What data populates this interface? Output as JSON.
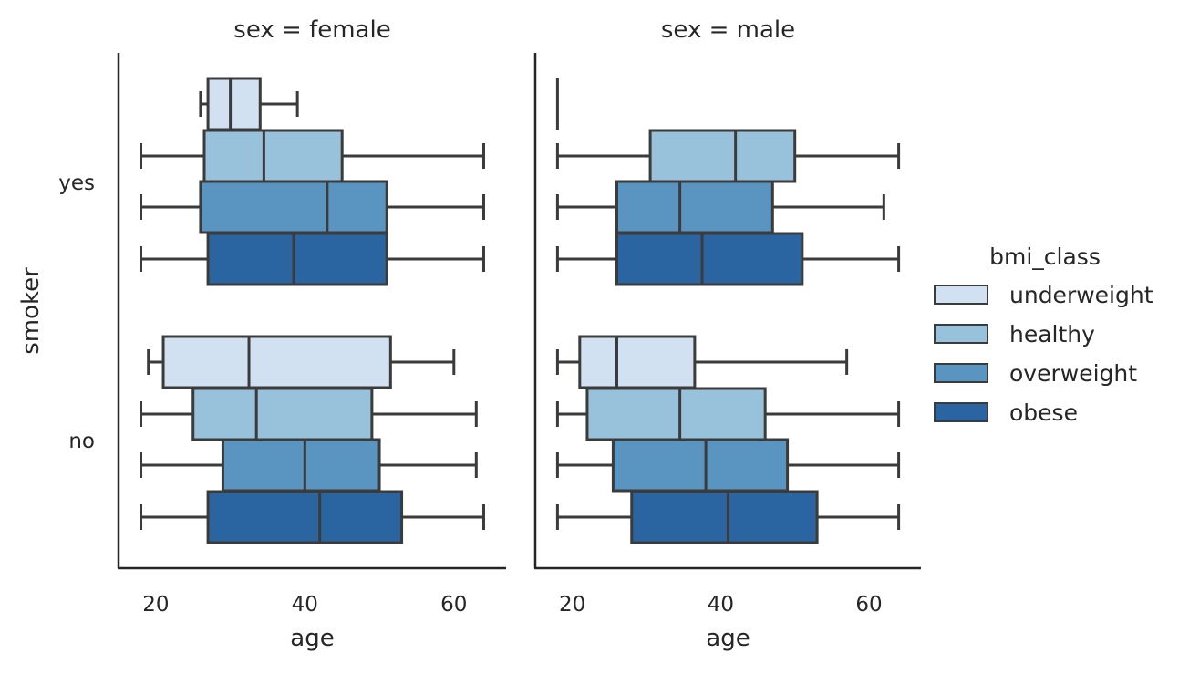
{
  "chart_data": {
    "type": "boxplot",
    "orientation": "horizontal",
    "x_label": "age",
    "y_label": "smoker",
    "xlim": [
      15,
      67
    ],
    "x_ticks": [
      "20",
      "40",
      "60"
    ],
    "categories": [
      "yes",
      "no"
    ],
    "hue_title": "bmi_class",
    "hue_levels": [
      "underweight",
      "healthy",
      "overweight",
      "obese"
    ],
    "colors": {
      "underweight": "#d2e1f1",
      "healthy": "#98c2db",
      "overweight": "#5a95c2",
      "obese": "#2b65a1",
      "line": "#3b3b3b",
      "axis": "#262626"
    },
    "legend_position": "right",
    "facets": [
      {
        "title": "sex = female",
        "groups": [
          {
            "category": "yes",
            "boxes": [
              {
                "hue": "underweight",
                "whislo": 26,
                "q1": 27,
                "med": 30,
                "q3": 34,
                "whishi": 39
              },
              {
                "hue": "healthy",
                "whislo": 18,
                "q1": 26.5,
                "med": 34.5,
                "q3": 45,
                "whishi": 64
              },
              {
                "hue": "overweight",
                "whislo": 18,
                "q1": 26,
                "med": 43,
                "q3": 51,
                "whishi": 64
              },
              {
                "hue": "obese",
                "whislo": 18,
                "q1": 27,
                "med": 38.5,
                "q3": 51,
                "whishi": 64
              }
            ]
          },
          {
            "category": "no",
            "boxes": [
              {
                "hue": "underweight",
                "whislo": 19,
                "q1": 21,
                "med": 32.5,
                "q3": 51.5,
                "whishi": 60
              },
              {
                "hue": "healthy",
                "whislo": 18,
                "q1": 25,
                "med": 33.5,
                "q3": 49,
                "whishi": 63
              },
              {
                "hue": "overweight",
                "whislo": 18,
                "q1": 29,
                "med": 40,
                "q3": 50,
                "whishi": 63
              },
              {
                "hue": "obese",
                "whislo": 18,
                "q1": 27,
                "med": 42,
                "q3": 53,
                "whishi": 64
              }
            ]
          }
        ]
      },
      {
        "title": "sex = male",
        "groups": [
          {
            "category": "yes",
            "boxes": [
              {
                "hue": "underweight",
                "whislo": 18,
                "q1": 18,
                "med": 18,
                "q3": 18,
                "whishi": 18
              },
              {
                "hue": "healthy",
                "whislo": 18,
                "q1": 30.5,
                "med": 42,
                "q3": 50,
                "whishi": 64
              },
              {
                "hue": "overweight",
                "whislo": 18,
                "q1": 26,
                "med": 34.5,
                "q3": 47,
                "whishi": 62
              },
              {
                "hue": "obese",
                "whislo": 18,
                "q1": 26,
                "med": 37.5,
                "q3": 51,
                "whishi": 64
              }
            ]
          },
          {
            "category": "no",
            "boxes": [
              {
                "hue": "underweight",
                "whislo": 18,
                "q1": 21,
                "med": 26,
                "q3": 36.5,
                "whishi": 57
              },
              {
                "hue": "healthy",
                "whislo": 18,
                "q1": 22,
                "med": 34.5,
                "q3": 46,
                "whishi": 64
              },
              {
                "hue": "overweight",
                "whislo": 18,
                "q1": 25.5,
                "med": 38,
                "q3": 49,
                "whishi": 64
              },
              {
                "hue": "obese",
                "whislo": 18,
                "q1": 28,
                "med": 41,
                "q3": 53,
                "whishi": 64
              }
            ]
          }
        ]
      }
    ]
  }
}
